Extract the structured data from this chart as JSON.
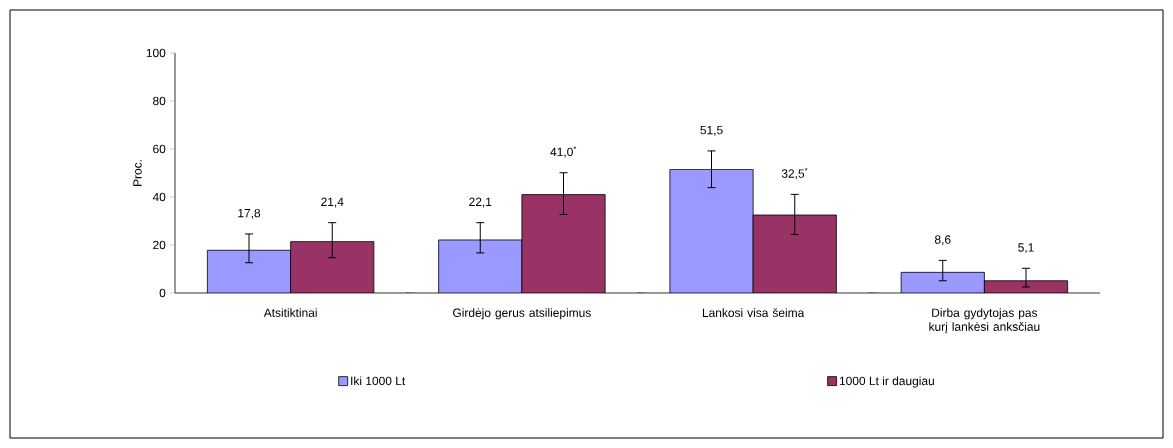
{
  "chart_data": {
    "type": "bar",
    "ylabel": "Proc.",
    "categories": [
      "Atsitiktinai",
      "Girdėjo gerus atsiliepimus",
      "Lankosi visa šeima",
      "Dirba gydytojas pas kurį lankėsi anksčiau"
    ],
    "series": [
      {
        "name": "Iki 1000 Lt",
        "color": "#9999ff",
        "values": [
          17.8,
          22.1,
          51.5,
          8.6
        ],
        "errors": [
          [
            12.6,
            24.6
          ],
          [
            16.7,
            29.3
          ],
          [
            43.9,
            59.2
          ],
          [
            5.1,
            13.6
          ]
        ],
        "value_labels": [
          "17,8",
          "22,1",
          "51,5",
          "8,6"
        ]
      },
      {
        "name": "1000 Lt ir daugiau",
        "color": "#993366",
        "values": [
          21.4,
          41.0,
          32.5,
          5.1
        ],
        "errors": [
          [
            14.7,
            29.3
          ],
          [
            32.7,
            50.1
          ],
          [
            24.4,
            41.1
          ],
          [
            2.5,
            10.3
          ]
        ],
        "value_labels": [
          "21,4",
          "41,0$^{*}$",
          "32,5$^{*}$",
          "5,1"
        ]
      }
    ],
    "ylim": [
      0,
      100
    ],
    "yticks": [
      0,
      20,
      40,
      60,
      80,
      100
    ],
    "grid": false,
    "legend": "bottom"
  }
}
